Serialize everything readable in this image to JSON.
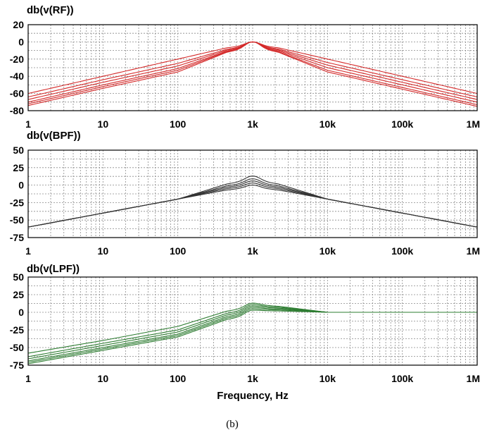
{
  "caption": "(b)",
  "chart_data": [
    {
      "type": "line",
      "title": "db(v(RF))",
      "xlabel": "",
      "xscale": "log",
      "xlim": [
        1,
        1000000
      ],
      "ylim": [
        -80,
        20
      ],
      "yticks": [
        20,
        0,
        -20,
        -40,
        -60,
        -80
      ],
      "xtick_labels": [
        "1",
        "10",
        "100",
        "1k",
        "10k",
        "100k",
        "1M"
      ],
      "grid": true,
      "color": "#d42a2a",
      "series": [
        {
          "x": [
            1,
            10,
            100,
            1000,
            10000,
            100000,
            1000000
          ],
          "y": [
            -60,
            -40,
            -20,
            0,
            -20,
            -40,
            -60
          ]
        },
        {
          "x": [
            1,
            10,
            100,
            1000,
            10000,
            100000,
            1000000
          ],
          "y": [
            -64,
            -44,
            -25,
            0,
            -24,
            -44,
            -64
          ]
        },
        {
          "x": [
            1,
            10,
            100,
            1000,
            10000,
            100000,
            1000000
          ],
          "y": [
            -67,
            -47,
            -28,
            0,
            -27,
            -47,
            -67
          ]
        },
        {
          "x": [
            1,
            10,
            100,
            1000,
            10000,
            100000,
            1000000
          ],
          "y": [
            -70,
            -50,
            -31,
            0,
            -30,
            -50,
            -70
          ]
        },
        {
          "x": [
            1,
            10,
            100,
            1000,
            10000,
            100000,
            1000000
          ],
          "y": [
            -72,
            -52,
            -33,
            0,
            -33,
            -53,
            -73
          ]
        },
        {
          "x": [
            1,
            10,
            100,
            1000,
            10000,
            100000,
            1000000
          ],
          "y": [
            -74,
            -54,
            -35,
            0,
            -35,
            -55,
            -75
          ]
        }
      ]
    },
    {
      "type": "line",
      "title": "db(v(BPF))",
      "xlabel": "",
      "xscale": "log",
      "xlim": [
        1,
        1000000
      ],
      "ylim": [
        -75,
        50
      ],
      "yticks": [
        50,
        25,
        0,
        -25,
        -50,
        -75
      ],
      "xtick_labels": [
        "1",
        "10",
        "100",
        "1k",
        "10k",
        "100k",
        "1M"
      ],
      "grid": true,
      "color": "#333333",
      "series": [
        {
          "x": [
            1,
            10,
            100,
            1000,
            10000,
            100000,
            1000000
          ],
          "y": [
            -60,
            -40,
            -20,
            13,
            -20,
            -40,
            -60
          ]
        },
        {
          "x": [
            1,
            10,
            100,
            1000,
            10000,
            100000,
            1000000
          ],
          "y": [
            -60,
            -40,
            -20,
            9,
            -20,
            -40,
            -60
          ]
        },
        {
          "x": [
            1,
            10,
            100,
            1000,
            10000,
            100000,
            1000000
          ],
          "y": [
            -60,
            -40,
            -20,
            6,
            -20,
            -40,
            -60
          ]
        },
        {
          "x": [
            1,
            10,
            100,
            1000,
            10000,
            100000,
            1000000
          ],
          "y": [
            -60,
            -40,
            -20,
            3,
            -20,
            -40,
            -60
          ]
        },
        {
          "x": [
            1,
            10,
            100,
            1000,
            10000,
            100000,
            1000000
          ],
          "y": [
            -60,
            -40,
            -20,
            0,
            -20,
            -40,
            -60
          ]
        }
      ]
    },
    {
      "type": "line",
      "title": "db(v(LPF))",
      "xlabel": "Frequency, Hz",
      "xscale": "log",
      "xlim": [
        1,
        1000000
      ],
      "ylim": [
        -75,
        50
      ],
      "yticks": [
        50,
        25,
        0,
        -25,
        -50,
        -75
      ],
      "xtick_labels": [
        "1",
        "10",
        "100",
        "1k",
        "10k",
        "100k",
        "1M"
      ],
      "grid": true,
      "color": "#2e7d32",
      "series": [
        {
          "x": [
            1,
            10,
            100,
            1000,
            10000,
            100000,
            1000000
          ],
          "y": [
            -58,
            -40,
            -20,
            13,
            0,
            0,
            0
          ]
        },
        {
          "x": [
            1,
            10,
            100,
            1000,
            10000,
            100000,
            1000000
          ],
          "y": [
            -63,
            -44,
            -25,
            11,
            0,
            0,
            0
          ]
        },
        {
          "x": [
            1,
            10,
            100,
            1000,
            10000,
            100000,
            1000000
          ],
          "y": [
            -66,
            -47,
            -28,
            9,
            0,
            0,
            0
          ]
        },
        {
          "x": [
            1,
            10,
            100,
            1000,
            10000,
            100000,
            1000000
          ],
          "y": [
            -69,
            -50,
            -31,
            7,
            0,
            0,
            0
          ]
        },
        {
          "x": [
            1,
            10,
            100,
            1000,
            10000,
            100000,
            1000000
          ],
          "y": [
            -71,
            -52,
            -33,
            5,
            0,
            0,
            0
          ]
        },
        {
          "x": [
            1,
            10,
            100,
            1000,
            10000,
            100000,
            1000000
          ],
          "y": [
            -73,
            -54,
            -35,
            3,
            0,
            0,
            0
          ]
        }
      ]
    }
  ]
}
